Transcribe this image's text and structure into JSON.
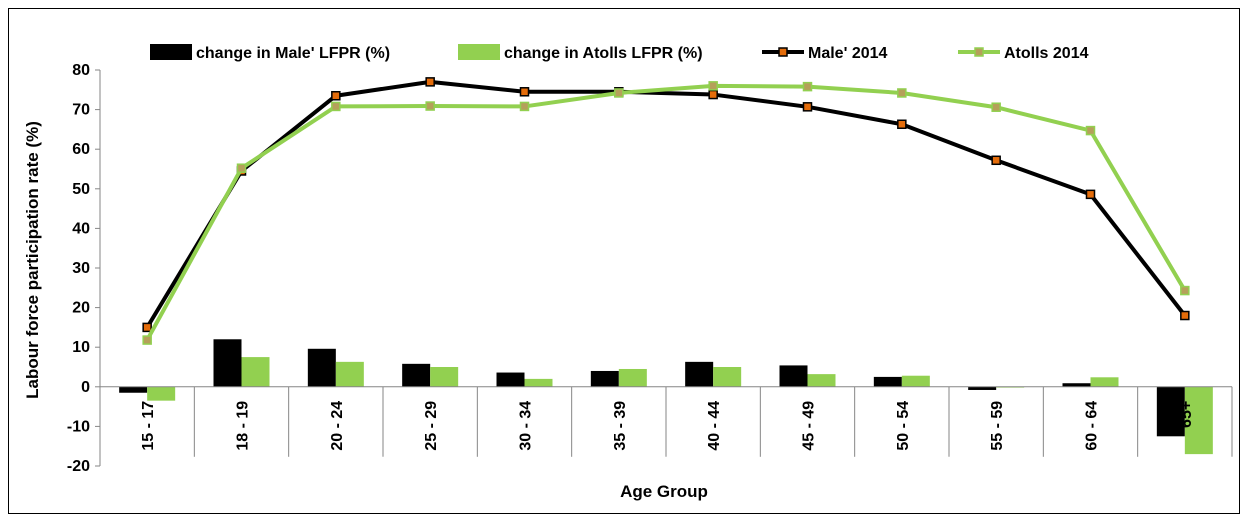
{
  "chart_data": {
    "type": "bar+line",
    "categories": [
      "15 - 17",
      "18 - 19",
      "20 - 24",
      "25 - 29",
      "30 - 34",
      "35 - 39",
      "40 - 44",
      "45 - 49",
      "50 - 54",
      "55 - 59",
      "60 - 64",
      "65+"
    ],
    "bar_series": [
      {
        "name": "change in Male' LFPR (%)",
        "color": "#000000",
        "values": [
          -1.5,
          12,
          9.6,
          5.8,
          3.6,
          4.0,
          6.3,
          5.4,
          2.5,
          -0.8,
          0.9,
          -12.5
        ]
      },
      {
        "name": "change in Atolls LFPR (%)",
        "color": "#92d050",
        "values": [
          -3.5,
          7.5,
          6.3,
          5.0,
          2.0,
          4.5,
          5.0,
          3.2,
          2.8,
          -0.2,
          2.4,
          -17.0
        ]
      }
    ],
    "line_series": [
      {
        "name": "Male' 2014",
        "line_color": "#000000",
        "marker_color": "#e46c0a",
        "values": [
          15,
          54.5,
          73.5,
          77,
          74.5,
          74.5,
          73.8,
          70.7,
          66.3,
          57.2,
          48.6,
          18
        ]
      },
      {
        "name": "Atolls 2014",
        "line_color": "#92d050",
        "marker_color": "#b5a05a",
        "values": [
          11.8,
          55.2,
          70.8,
          70.9,
          70.8,
          74.2,
          76,
          75.8,
          74.2,
          70.6,
          64.7,
          24.3
        ]
      }
    ],
    "ylabel": "Labour force participation rate (%)",
    "xlabel": "Age Group",
    "ylim": [
      -20,
      80
    ],
    "yticks": [
      -20,
      -10,
      0,
      10,
      20,
      30,
      40,
      50,
      60,
      70,
      80
    ],
    "grid": false,
    "legend_position": "top"
  }
}
